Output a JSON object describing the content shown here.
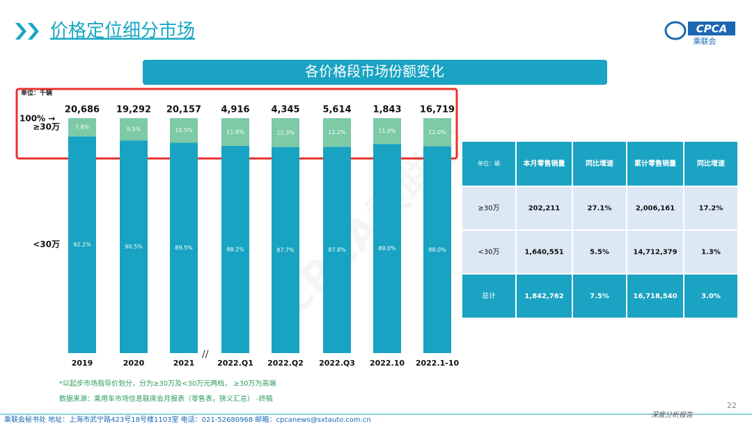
{
  "header": {
    "title": "价格定位细分市场",
    "logo": "CPCA",
    "logo_sub": "乘联会"
  },
  "chart_data": {
    "type": "bar",
    "stacked": true,
    "title": "各价格段市场份额变化",
    "unit": "单位：千辆",
    "top_label": "100% →",
    "categories": [
      "2019",
      "2020",
      "2021",
      "2022.Q1",
      "2022.Q2",
      "2022.Q3",
      "2022.10",
      "2022.1-10"
    ],
    "series": [
      {
        "name": "<30万",
        "color": "#18a3c2",
        "values": [
          92.2,
          90.5,
          89.5,
          88.2,
          87.7,
          87.8,
          89.0,
          88.0
        ],
        "value_labels": [
          "92.2%",
          "90.5%",
          "89.5%",
          "88.2%",
          "87.7%",
          "87.8%",
          "89.0%",
          "88.0%"
        ]
      },
      {
        "name": "≥30万",
        "color": "#7ccaa6",
        "values": [
          7.8,
          9.5,
          10.5,
          11.8,
          12.3,
          12.2,
          11.0,
          12.0
        ],
        "value_labels": [
          "7.8%",
          "9.5%",
          "10.5%",
          "11.8%",
          "12.3%",
          "12.2%",
          "11.0%",
          "12.0%"
        ]
      }
    ],
    "totals": {
      "values": [
        20686,
        19292,
        20157,
        4916,
        4345,
        5614,
        1843,
        16719
      ],
      "value_labels": [
        "20,686",
        "19,292",
        "20,157",
        "4,916",
        "4,345",
        "5,614",
        "1,843",
        "16,719"
      ]
    },
    "ylim": [
      0,
      100
    ]
  },
  "table": {
    "header": [
      "单位：辆",
      "本月零售销量",
      "同比增速",
      "累计零售销量",
      "同比增速"
    ],
    "rows": [
      [
        "≥30万",
        "202,211",
        "27.1%",
        "2,006,161",
        "17.2%"
      ],
      [
        "<30万",
        "1,640,551",
        "5.5%",
        "14,712,379",
        "1.3%"
      ],
      [
        "总计",
        "1,842,762",
        "7.5%",
        "16,718,540",
        "3.0%"
      ]
    ]
  },
  "watermark": "CPCA乘联会",
  "notes": [
    "*以起步市场指导价划分，分为≥30万及<30万元两档， ≥30万为高端",
    "数据来源：乘用车市场信息联席会月报表（零售表，狭义汇总） -终稿"
  ],
  "footer": {
    "address": "乘联会秘书处  地址：上海市武宁路423号18号楼1103室  电话：021-52680968  邮箱：cpcanews@sxtauto.com.cn",
    "tagline": "深度分析报告",
    "page": "22"
  }
}
